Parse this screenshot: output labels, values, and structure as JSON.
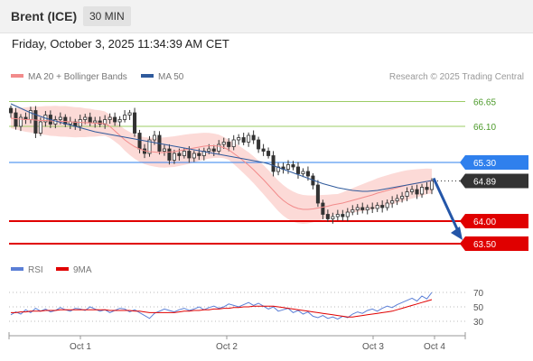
{
  "header": {
    "instrument": "Brent (ICE)",
    "interval": "30 MIN",
    "timestamp": "Friday, October 3, 2025 11:34:39 AM CET"
  },
  "legend": {
    "ma20_label": "MA 20 + Bollinger Bands",
    "ma20_color": "#f28b8b",
    "ma50_label": "MA 50",
    "ma50_color": "#2f5a9c",
    "credit": "Research © 2025 Trading Central"
  },
  "rsi_legend": {
    "rsi_label": "RSI",
    "rsi_color": "#5b7fd6",
    "ma9_label": "9MA",
    "ma9_color": "#e00000"
  },
  "chart_data": [
    {
      "type": "candlestick",
      "ylim": [
        63.3,
        66.9
      ],
      "x_ticks": [
        "Oct 1",
        "Oct 2",
        "Oct 3",
        "Oct 4"
      ],
      "levels": [
        {
          "value": 66.65,
          "label": "66.65",
          "style": "thin",
          "color": "#9ccc65"
        },
        {
          "value": 66.1,
          "label": "66.10",
          "style": "thin",
          "color": "#9ccc65"
        },
        {
          "value": 65.3,
          "label": "65.30",
          "style": "thin",
          "color": "#2f80ed"
        },
        {
          "value": 64.89,
          "label": "64.89",
          "style": "dotted",
          "color": "#333333"
        },
        {
          "value": 64.0,
          "label": "64.00",
          "style": "thick",
          "color": "#e00000"
        },
        {
          "value": 63.5,
          "label": "63.50",
          "style": "thick",
          "color": "#e00000"
        }
      ],
      "close": [
        66.4,
        66.1,
        66.3,
        66.25,
        66.45,
        65.95,
        66.2,
        66.35,
        66.15,
        66.25,
        66.3,
        66.15,
        66.2,
        66.1,
        66.25,
        66.3,
        66.18,
        66.22,
        66.15,
        66.25,
        66.3,
        66.2,
        66.25,
        66.35,
        66.4,
        65.95,
        65.6,
        65.5,
        65.8,
        65.9,
        65.55,
        65.6,
        65.35,
        65.5,
        65.45,
        65.55,
        65.4,
        65.5,
        65.45,
        65.55,
        65.6,
        65.55,
        65.7,
        65.75,
        65.65,
        65.8,
        65.85,
        65.75,
        65.9,
        65.8,
        65.6,
        65.55,
        65.45,
        65.1,
        65.2,
        65.15,
        65.25,
        65.2,
        65.05,
        65.1,
        65.0,
        64.8,
        64.4,
        64.15,
        64.05,
        64.1,
        64.15,
        64.1,
        64.2,
        64.25,
        64.3,
        64.25,
        64.3,
        64.28,
        64.35,
        64.3,
        64.4,
        64.45,
        64.5,
        64.55,
        64.65,
        64.7,
        64.6,
        64.75,
        64.7,
        64.89
      ],
      "ma20": [
        66.28,
        66.27,
        66.26,
        66.25,
        66.25,
        66.24,
        66.23,
        66.23,
        66.22,
        66.22,
        66.21,
        66.21,
        66.2,
        66.19,
        66.19,
        66.18,
        66.18,
        66.17,
        66.17,
        66.16,
        66.1,
        66.0,
        65.9,
        65.8,
        65.72,
        65.65,
        65.6,
        65.56,
        65.54,
        65.53,
        65.52,
        65.52,
        65.53,
        65.54,
        65.56,
        65.58,
        65.6,
        65.62,
        65.64,
        65.66,
        65.67,
        65.67,
        65.66,
        65.63,
        65.58,
        65.5,
        65.42,
        65.33,
        65.24,
        65.14,
        65.03,
        64.92,
        64.8,
        64.68,
        64.56,
        64.46,
        64.38,
        64.32,
        64.28,
        64.26,
        64.26,
        64.27,
        64.29,
        64.31,
        64.33,
        64.36,
        64.38,
        64.4,
        64.43,
        64.46,
        64.49,
        64.52,
        64.55,
        64.58,
        64.62,
        64.65,
        64.68,
        64.71,
        64.74,
        64.77,
        64.8,
        64.82,
        64.84,
        64.86,
        64.88,
        64.89
      ],
      "ma50": [
        66.6,
        66.55,
        66.5,
        66.45,
        66.4,
        66.36,
        66.32,
        66.28,
        66.25,
        66.22,
        66.19,
        66.16,
        66.13,
        66.1,
        66.07,
        66.04,
        66.01,
        65.98,
        65.96,
        65.94,
        65.92,
        65.9,
        65.88,
        65.86,
        65.84,
        65.82,
        65.8,
        65.78,
        65.76,
        65.74,
        65.72,
        65.7,
        65.68,
        65.66,
        65.64,
        65.62,
        65.6,
        65.58,
        65.56,
        65.54,
        65.52,
        65.5,
        65.48,
        65.46,
        65.44,
        65.42,
        65.4,
        65.38,
        65.36,
        65.34,
        65.32,
        65.3,
        65.27,
        65.23,
        65.19,
        65.15,
        65.11,
        65.07,
        65.03,
        64.99,
        64.95,
        64.91,
        64.87,
        64.83,
        64.8,
        64.77,
        64.74,
        64.72,
        64.7,
        64.68,
        64.67,
        64.66,
        64.66,
        64.67,
        64.68,
        64.7,
        64.72,
        64.74,
        64.76,
        64.78,
        64.8,
        64.82,
        64.84,
        64.86,
        64.88,
        64.9
      ]
    },
    {
      "type": "line",
      "title": "RSI",
      "ylim": [
        20,
        80
      ],
      "y_ticks": [
        70,
        50,
        30
      ],
      "series": [
        {
          "name": "RSI",
          "color": "#5b7fd6",
          "values": [
            39,
            43,
            40,
            46,
            42,
            48,
            44,
            47,
            43,
            45,
            49,
            46,
            44,
            48,
            47,
            45,
            50,
            47,
            44,
            46,
            42,
            45,
            48,
            47,
            43,
            46,
            42,
            38,
            34,
            41,
            44,
            47,
            45,
            43,
            46,
            48,
            45,
            47,
            50,
            46,
            49,
            51,
            48,
            50,
            54,
            52,
            50,
            53,
            56,
            52,
            55,
            51,
            47,
            50,
            44,
            46,
            48,
            42,
            45,
            40,
            43,
            37,
            35,
            38,
            34,
            36,
            33,
            37,
            35,
            40,
            43,
            41,
            45,
            47,
            44,
            48,
            51,
            49,
            53,
            56,
            59,
            62,
            58,
            65,
            61,
            70
          ]
        },
        {
          "name": "9MA",
          "color": "#e00000",
          "values": [
            42,
            42,
            43,
            43,
            44,
            44,
            44,
            45,
            45,
            45,
            46,
            46,
            46,
            46,
            46,
            46,
            46,
            46,
            46,
            46,
            45,
            45,
            45,
            45,
            45,
            44,
            44,
            43,
            42,
            42,
            42,
            42,
            42,
            42,
            43,
            44,
            44,
            45,
            45,
            46,
            46,
            47,
            47,
            48,
            48,
            49,
            49,
            50,
            50,
            51,
            51,
            51,
            51,
            51,
            50,
            49,
            48,
            47,
            46,
            45,
            44,
            43,
            42,
            41,
            40,
            39,
            38,
            37,
            36,
            36,
            37,
            38,
            39,
            40,
            41,
            42,
            43,
            44,
            46,
            48,
            50,
            52,
            54,
            56,
            58,
            60
          ]
        }
      ]
    }
  ]
}
